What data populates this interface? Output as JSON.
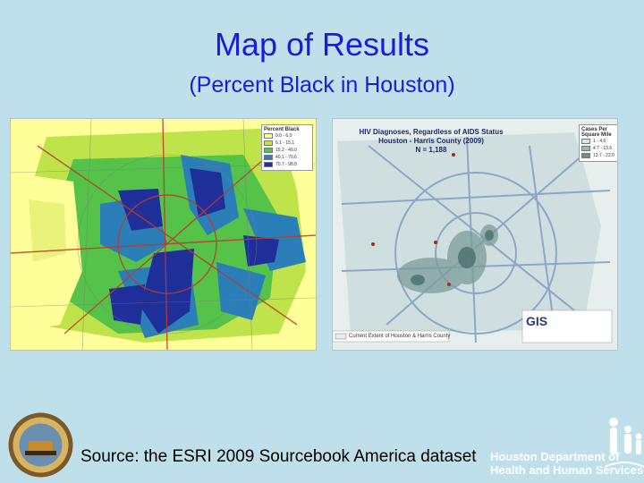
{
  "slide": {
    "title": "Map of Results",
    "subtitle": "(Percent Black in Houston)",
    "source": "Source: the ESRI 2009 Sourcebook America dataset",
    "department": [
      "Houston Department of",
      "Health and Human Services"
    ]
  },
  "left_map": {
    "legend_title": "Percent Black",
    "legend": [
      {
        "label": "0.0 - 6.0",
        "color": "#ffff99"
      },
      {
        "label": "6.1 - 15.1",
        "color": "#bfe34a"
      },
      {
        "label": "15.2 - 40.0",
        "color": "#55c24a"
      },
      {
        "label": "40.1 - 70.6",
        "color": "#2a7fb8"
      },
      {
        "label": "70.7 - 98.8",
        "color": "#1f2f9a"
      }
    ]
  },
  "right_map": {
    "title_lines": [
      "HIV Diagnoses, Regardless of AIDS Status",
      "Houston - Harris County (2009)",
      "N = 1,188"
    ],
    "legend_title": [
      "Cases Per",
      "Square Mile"
    ],
    "legend": [
      {
        "label": "1 - 4.6",
        "color": "#d9e6e6"
      },
      {
        "label": "4.7 - 13.6",
        "color": "#9fb8b6"
      },
      {
        "label": "13.7 - 22.0",
        "color": "#6e8f8d"
      }
    ],
    "note": "Current Extent of Houston & Harris County",
    "gis_label": "GIS"
  }
}
